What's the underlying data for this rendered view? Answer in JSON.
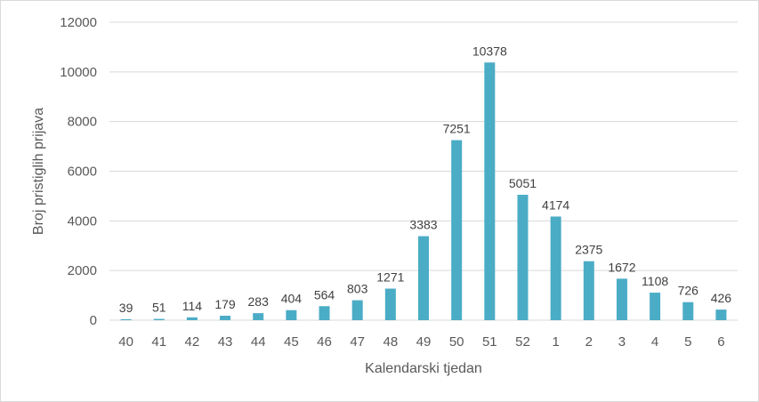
{
  "chart_data": {
    "type": "bar",
    "categories": [
      "40",
      "41",
      "42",
      "43",
      "44",
      "45",
      "46",
      "47",
      "48",
      "49",
      "50",
      "51",
      "52",
      "1",
      "2",
      "3",
      "4",
      "5",
      "6"
    ],
    "values": [
      39,
      51,
      114,
      179,
      283,
      404,
      564,
      803,
      1271,
      3383,
      7251,
      10378,
      5051,
      4174,
      2375,
      1672,
      1108,
      726,
      426
    ],
    "data_labels": [
      "39",
      "51",
      "114",
      "179",
      "283",
      "404",
      "564",
      "803",
      "1271",
      "3383",
      "7251",
      "10378",
      "5051",
      "4174",
      "2375",
      "1672",
      "1108",
      "726",
      "426"
    ],
    "xlabel": "Kalendarski tjedan",
    "ylabel": "Broj pristiglih prijava",
    "ylim": [
      0,
      12000
    ],
    "yticks": [
      "0",
      "2000",
      "4000",
      "6000",
      "8000",
      "10000",
      "12000"
    ],
    "grid": true,
    "legend": "none",
    "bar_color": "#4bacc6"
  }
}
